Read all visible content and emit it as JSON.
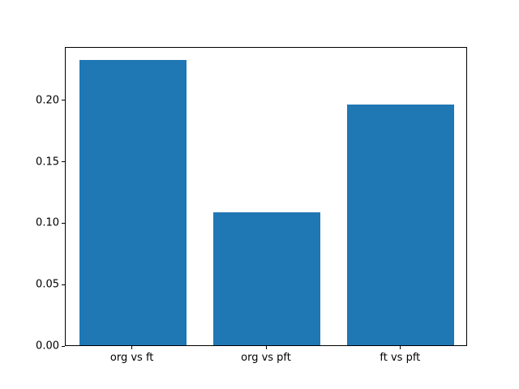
{
  "chart_data": {
    "type": "bar",
    "categories": [
      "org vs ft",
      "org vs pft",
      "ft vs pft"
    ],
    "values": [
      0.232,
      0.108,
      0.196
    ],
    "title": "",
    "xlabel": "",
    "ylabel": "",
    "ylim": [
      0,
      0.2436
    ],
    "yticks": [
      0.0,
      0.05,
      0.1,
      0.15,
      0.2
    ],
    "ytick_labels": [
      "0.00",
      "0.05",
      "0.10",
      "0.15",
      "0.20"
    ],
    "bar_color": "#1f77b4",
    "grid": false,
    "legend": "none",
    "bar_width_fraction": 0.8
  }
}
